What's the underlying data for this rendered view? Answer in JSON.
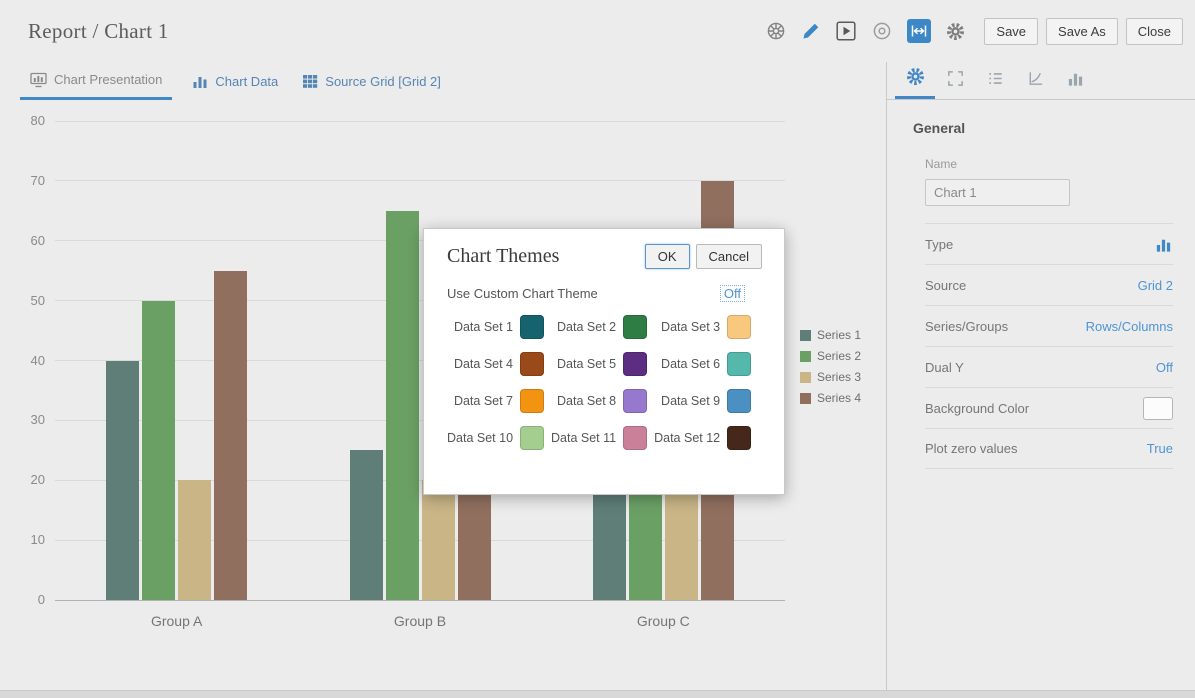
{
  "colors": {
    "accent": "#3f87c5",
    "link": "#4e94d4",
    "background": "#ececec"
  },
  "header": {
    "title": "Report / Chart 1",
    "icons": [
      {
        "name": "theme-wheel-icon"
      },
      {
        "name": "edit-pencil-icon"
      },
      {
        "name": "run-report-icon"
      },
      {
        "name": "record-icon"
      },
      {
        "name": "fit-width-icon"
      },
      {
        "name": "settings-gear-icon"
      }
    ],
    "buttons": [
      {
        "id": "save",
        "label": "Save"
      },
      {
        "id": "save-as",
        "label": "Save As"
      },
      {
        "id": "close",
        "label": "Close"
      }
    ]
  },
  "tabs": [
    {
      "id": "chart-presentation",
      "label": "Chart Presentation",
      "icon": "chart-presentation-icon",
      "active": true
    },
    {
      "id": "chart-data",
      "label": "Chart Data",
      "icon": "chart-data-icon",
      "active": false
    },
    {
      "id": "source-grid",
      "label": "Source Grid [Grid 2]",
      "icon": "source-grid-icon",
      "active": false
    }
  ],
  "chart_data": {
    "type": "bar",
    "categories": [
      "Group A",
      "Group B",
      "Group C"
    ],
    "series": [
      {
        "name": "Series 1",
        "color": "#5e7e77",
        "values": [
          40,
          25,
          45
        ]
      },
      {
        "name": "Series 2",
        "color": "#6ba065",
        "values": [
          50,
          65,
          50
        ]
      },
      {
        "name": "Series 3",
        "color": "#c9b586",
        "values": [
          20,
          20,
          35
        ]
      },
      {
        "name": "Series 4",
        "color": "#916f5f",
        "values": [
          55,
          50,
          70
        ]
      }
    ],
    "ylim": [
      0,
      80
    ],
    "yticks": [
      0,
      10,
      20,
      30,
      40,
      50,
      60,
      70,
      80
    ],
    "grid": true,
    "legend_position": "right"
  },
  "dialog": {
    "title": "Chart Themes",
    "buttons": [
      {
        "id": "ok",
        "label": "OK"
      },
      {
        "id": "cancel",
        "label": "Cancel"
      }
    ],
    "custom_theme_label": "Use Custom Chart Theme",
    "custom_theme_value": "Off",
    "data_sets": [
      {
        "label": "Data Set 1",
        "color": "#16636f"
      },
      {
        "label": "Data Set 2",
        "color": "#2e7d44"
      },
      {
        "label": "Data Set 3",
        "color": "#f8c87e"
      },
      {
        "label": "Data Set 4",
        "color": "#9a4a18"
      },
      {
        "label": "Data Set 5",
        "color": "#5c2d80"
      },
      {
        "label": "Data Set 6",
        "color": "#54b8ac"
      },
      {
        "label": "Data Set 7",
        "color": "#f29311"
      },
      {
        "label": "Data Set 8",
        "color": "#9678ce"
      },
      {
        "label": "Data Set 9",
        "color": "#4b90c2"
      },
      {
        "label": "Data Set 10",
        "color": "#a4ce8f"
      },
      {
        "label": "Data Set 11",
        "color": "#c98098"
      },
      {
        "label": "Data Set 12",
        "color": "#45281b"
      }
    ]
  },
  "sidebar": {
    "tabs": [
      {
        "icon": "gear-icon",
        "active": true
      },
      {
        "icon": "expand-icon",
        "active": false
      },
      {
        "icon": "list-icon",
        "active": false
      },
      {
        "icon": "axis-icon",
        "active": false
      },
      {
        "icon": "chart-bars-icon",
        "active": false
      }
    ],
    "heading": "General",
    "name_label": "Name",
    "name_value": "Chart 1",
    "rows": [
      {
        "label": "Type",
        "value_type": "icon",
        "value": "bar-chart"
      },
      {
        "label": "Source",
        "value_type": "link",
        "value": "Grid 2"
      },
      {
        "label": "Series/Groups",
        "value_type": "link",
        "value": "Rows/Columns"
      },
      {
        "label": "Dual Y",
        "value_type": "link",
        "value": "Off"
      },
      {
        "label": "Background Color",
        "value_type": "swatch",
        "value": ""
      },
      {
        "label": "Plot zero values",
        "value_type": "link",
        "value": "True"
      }
    ]
  }
}
